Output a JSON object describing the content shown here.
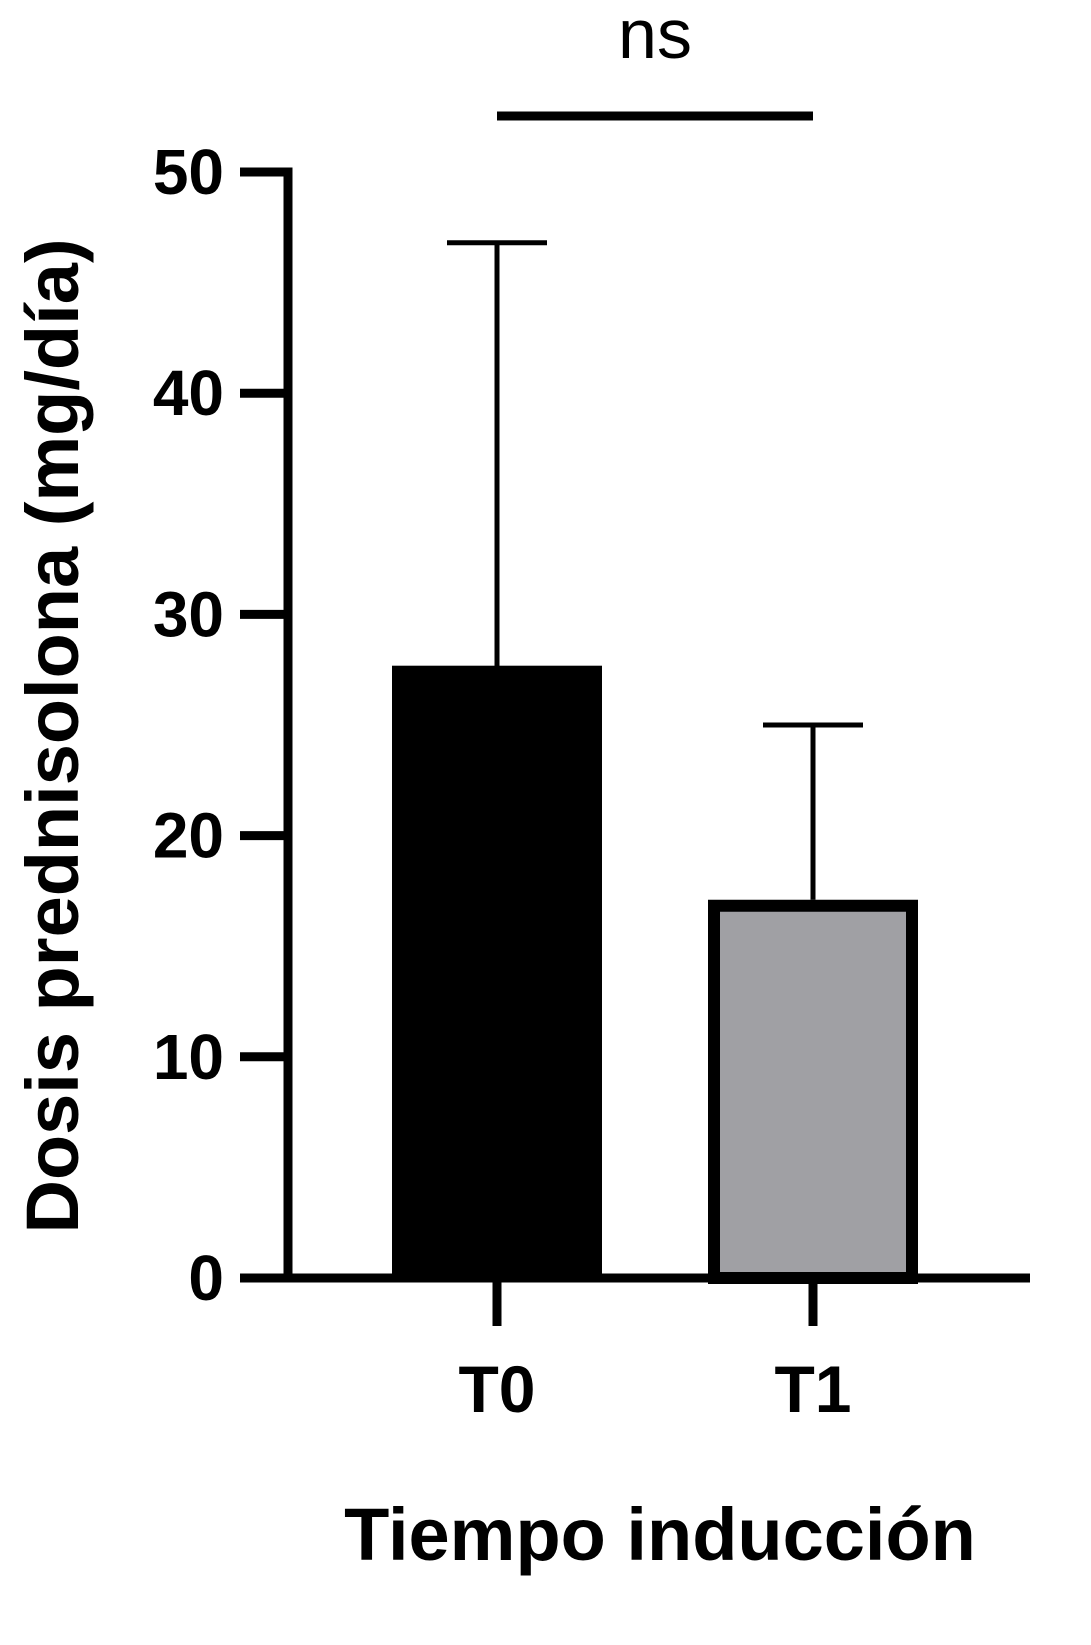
{
  "chart_data": {
    "type": "bar",
    "title": "",
    "xlabel": "Tiempo inducción",
    "ylabel": "Dosis prednisolona (mg/día)",
    "ylim": [
      0,
      50
    ],
    "yticks": [
      0,
      10,
      20,
      30,
      40,
      50
    ],
    "ytick_labels": [
      "0",
      "10",
      "20",
      "30",
      "40",
      "50"
    ],
    "categories": [
      "T0",
      "T1"
    ],
    "values": [
      27.5,
      17.1
    ],
    "error_upper": [
      46.8,
      25.0
    ],
    "bar_colors": [
      "#000000",
      "#a0a0a4"
    ],
    "significance": {
      "between": [
        "T0",
        "T1"
      ],
      "label": "ns"
    },
    "grid": false,
    "legend": "none"
  }
}
